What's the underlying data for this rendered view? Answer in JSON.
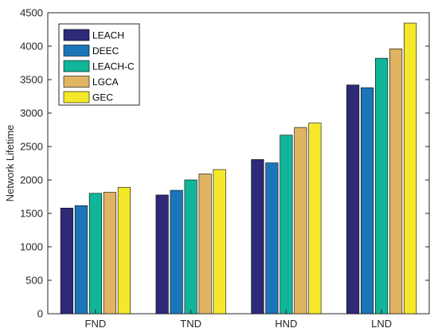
{
  "chart_data": {
    "type": "bar",
    "title": "",
    "xlabel": "",
    "ylabel": "Network Lifetime",
    "ylim": [
      0,
      4500
    ],
    "yticks": [
      0,
      500,
      1000,
      1500,
      2000,
      2500,
      3000,
      3500,
      4000,
      4500
    ],
    "grid": false,
    "legend_position": "top-left",
    "categories": [
      "FND",
      "TND",
      "HND",
      "LND"
    ],
    "series": [
      {
        "name": "LEACH",
        "color": "#2e2a78",
        "values": [
          1580,
          1775,
          2305,
          3420
        ]
      },
      {
        "name": "DEEC",
        "color": "#1a76b8",
        "values": [
          1615,
          1845,
          2255,
          3380
        ]
      },
      {
        "name": "LEACH-C",
        "color": "#11b59a",
        "values": [
          1800,
          2000,
          2670,
          3820
        ]
      },
      {
        "name": "LGCA",
        "color": "#e0b463",
        "values": [
          1815,
          2090,
          2785,
          3960
        ]
      },
      {
        "name": "GEC",
        "color": "#f5e82b",
        "values": [
          1890,
          2155,
          2850,
          4345
        ]
      }
    ]
  }
}
